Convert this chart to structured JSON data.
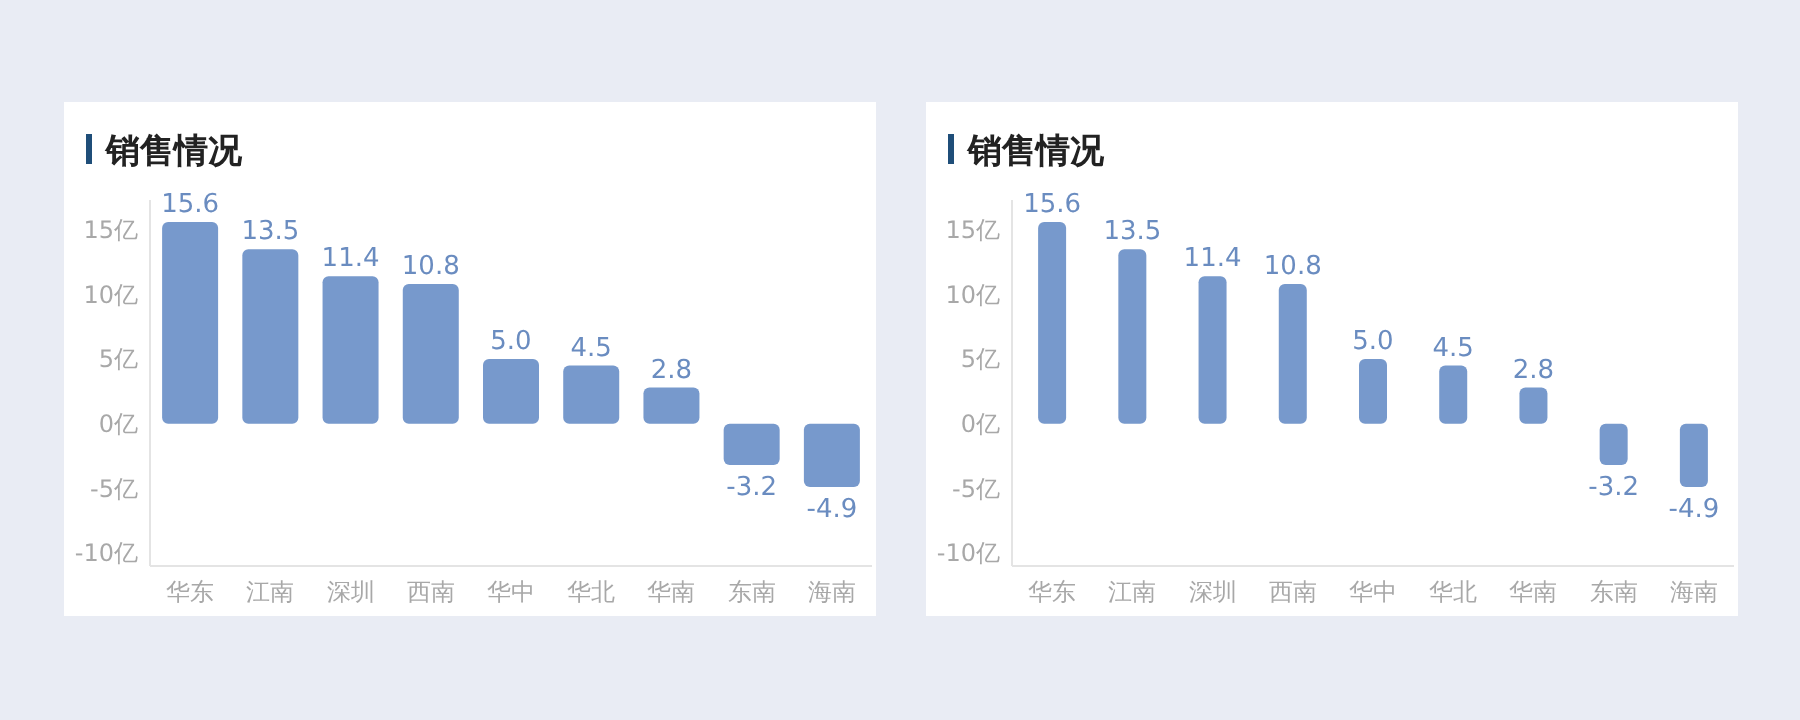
{
  "chart_data": [
    {
      "type": "bar",
      "title": "销售情况",
      "categories": [
        "华东",
        "江南",
        "深圳",
        "西南",
        "华中",
        "华北",
        "华南",
        "东南",
        "海南"
      ],
      "values": [
        15.6,
        13.5,
        11.4,
        10.8,
        5.0,
        4.5,
        2.8,
        -3.2,
        -4.9
      ],
      "value_labels": [
        "15.6",
        "13.5",
        "11.4",
        "10.8",
        "5.0",
        "4.5",
        "2.8",
        "-3.2",
        "-4.9"
      ],
      "color": "#7799cc",
      "ylim": [
        -11,
        17.3
      ],
      "yticks": [
        {
          "value": 15,
          "label": "15亿"
        },
        {
          "value": 10,
          "label": "10亿"
        },
        {
          "value": 5,
          "label": "5亿"
        },
        {
          "value": 0,
          "label": "0亿"
        },
        {
          "value": -5,
          "label": "-5亿"
        },
        {
          "value": -10,
          "label": "-10亿"
        }
      ]
    },
    {
      "type": "bar",
      "title": "销售情况",
      "categories": [
        "华东",
        "江南",
        "深圳",
        "西南",
        "华中",
        "华北",
        "华南",
        "东南",
        "海南"
      ],
      "values": [
        15.6,
        13.5,
        11.4,
        10.8,
        5.0,
        4.5,
        2.8,
        -3.2,
        -4.9
      ],
      "value_labels": [
        "15.6",
        "13.5",
        "11.4",
        "10.8",
        "5.0",
        "4.5",
        "2.8",
        "-3.2",
        "-4.9"
      ],
      "color": "#7799cc",
      "ylim": [
        -11,
        17.3
      ],
      "yticks": [
        {
          "value": 15,
          "label": "15亿"
        },
        {
          "value": 10,
          "label": "10亿"
        },
        {
          "value": 5,
          "label": "5亿"
        },
        {
          "value": 0,
          "label": "0亿"
        },
        {
          "value": -5,
          "label": "-5亿"
        },
        {
          "value": -10,
          "label": "-10亿"
        }
      ]
    }
  ]
}
